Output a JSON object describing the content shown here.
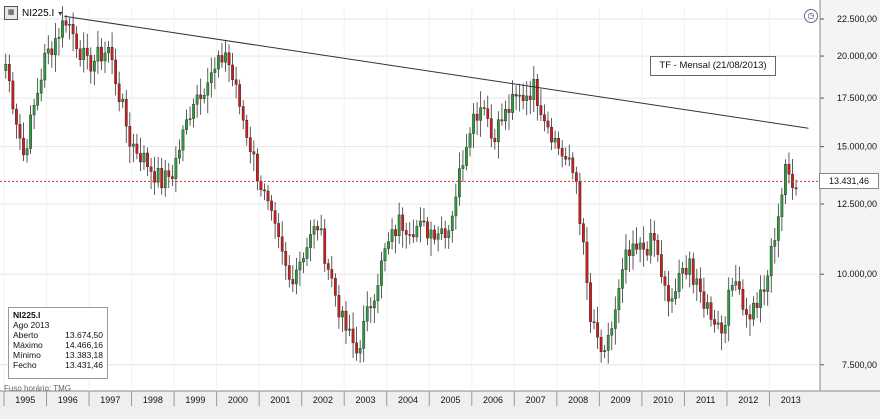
{
  "symbol": {
    "name": "NI225.I",
    "icon": "chart-type-icon"
  },
  "note": "TF - Mensal (21/08/2013)",
  "info": {
    "title": "NI225.I",
    "period": "Ago 2013",
    "rows": [
      {
        "label": "Aberto",
        "value": "13.674,50"
      },
      {
        "label": "Máximo",
        "value": "14.466,16"
      },
      {
        "label": "Mínimo",
        "value": "13.383,18"
      },
      {
        "label": "Fecho",
        "value": "13.431,46"
      }
    ]
  },
  "timezone": "Fuso horário: TMG",
  "current_label": "13.431,46",
  "colors": {
    "up": "#2e9b3e",
    "down": "#cc1e1e",
    "trend": "#333333",
    "current": "#d93030",
    "grid": "#e6e6e6"
  },
  "chart_data": {
    "type": "candlestick",
    "y_scale": "log",
    "ylim": [
      6900,
      23300
    ],
    "y_ticks": [
      {
        "value": 22500,
        "label": "22.500,00"
      },
      {
        "value": 20000,
        "label": "20.000,00"
      },
      {
        "value": 17500,
        "label": "17.500,00"
      },
      {
        "value": 15000,
        "label": "15.000,00"
      },
      {
        "value": 12500,
        "label": "12.500,00"
      },
      {
        "value": 10000,
        "label": "10.000,00"
      },
      {
        "value": 7500,
        "label": "7.500,00"
      }
    ],
    "x_ticks": [
      "1995",
      "1996",
      "1997",
      "1998",
      "1999",
      "2000",
      "2001",
      "2002",
      "2003",
      "2004",
      "2005",
      "2006",
      "2007",
      "2008",
      "2009",
      "2010",
      "2011",
      "2012",
      "2013"
    ],
    "current_value": 13431.46,
    "trendline": {
      "start": {
        "date": "1996-06",
        "value": 22700
      },
      "end": {
        "date": "2013-12",
        "value": 15900
      }
    },
    "anchors": [
      [
        "1995-01",
        19500
      ],
      [
        "1995-06",
        14600
      ],
      [
        "1995-12",
        19800
      ],
      [
        "1996-06",
        22600
      ],
      [
        "1996-12",
        19400
      ],
      [
        "1997-06",
        20500
      ],
      [
        "1997-12",
        15300
      ],
      [
        "1998-09",
        13400
      ],
      [
        "1998-12",
        13800
      ],
      [
        "1999-06",
        17500
      ],
      [
        "1999-12",
        19000
      ],
      [
        "2000-03",
        20300
      ],
      [
        "2000-12",
        13800
      ],
      [
        "2001-09",
        9800
      ],
      [
        "2001-12",
        10500
      ],
      [
        "2002-05",
        11700
      ],
      [
        "2002-12",
        8600
      ],
      [
        "2003-04",
        7800
      ],
      [
        "2003-12",
        10700
      ],
      [
        "2004-04",
        11800
      ],
      [
        "2004-12",
        11500
      ],
      [
        "2005-06",
        11600
      ],
      [
        "2005-12",
        16200
      ],
      [
        "2006-04",
        17400
      ],
      [
        "2006-06",
        15500
      ],
      [
        "2006-12",
        17200
      ],
      [
        "2007-06",
        18100
      ],
      [
        "2007-12",
        15300
      ],
      [
        "2008-06",
        13500
      ],
      [
        "2008-10",
        8600
      ],
      [
        "2009-02",
        7600
      ],
      [
        "2009-08",
        10500
      ],
      [
        "2010-04",
        11100
      ],
      [
        "2010-08",
        9000
      ],
      [
        "2011-02",
        10600
      ],
      [
        "2011-03",
        9700
      ],
      [
        "2011-11",
        8400
      ],
      [
        "2012-03",
        10100
      ],
      [
        "2012-06",
        8700
      ],
      [
        "2012-11",
        9400
      ],
      [
        "2013-05",
        13800
      ],
      [
        "2013-08",
        13431
      ]
    ]
  }
}
